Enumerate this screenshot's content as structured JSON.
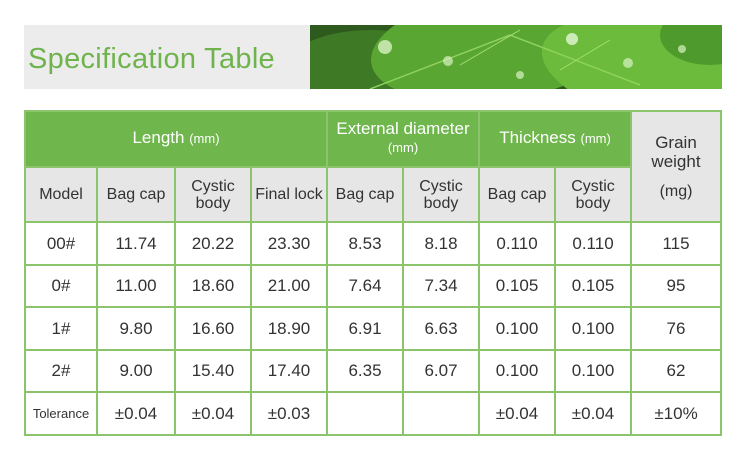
{
  "banner": {
    "title": "Specification Table"
  },
  "groups": {
    "length": {
      "label": "Length",
      "unit": "(mm)"
    },
    "external": {
      "label": "External diameter",
      "unit": "(mm)"
    },
    "thickness": {
      "label": "Thickness",
      "unit": "(mm)"
    },
    "grain": {
      "label": "Grain weight",
      "unit": "(mg)"
    }
  },
  "subheaders": [
    "Model",
    "Bag cap",
    "Cystic body",
    "Final lock",
    "Bag cap",
    "Cystic body",
    "Bag cap",
    "Cystic body"
  ],
  "rows": [
    [
      "00#",
      "11.74",
      "20.22",
      "23.30",
      "8.53",
      "8.18",
      "0.110",
      "0.110",
      "115"
    ],
    [
      "0#",
      "11.00",
      "18.60",
      "21.00",
      "7.64",
      "7.34",
      "0.105",
      "0.105",
      "95"
    ],
    [
      "1#",
      "9.80",
      "16.60",
      "18.90",
      "6.91",
      "6.63",
      "0.100",
      "0.100",
      "76"
    ],
    [
      "2#",
      "9.00",
      "15.40",
      "17.40",
      "6.35",
      "6.07",
      "0.100",
      "0.100",
      "62"
    ],
    [
      "Tolerance",
      "±0.04",
      "±0.04",
      "±0.03",
      "",
      "",
      "±0.04",
      "±0.04",
      "±10%"
    ]
  ],
  "colors": {
    "header_green": "#6fb64c",
    "title_green": "#6fb34d",
    "subheader_gray": "#e6e6e6",
    "grid": "#8cc46b"
  }
}
